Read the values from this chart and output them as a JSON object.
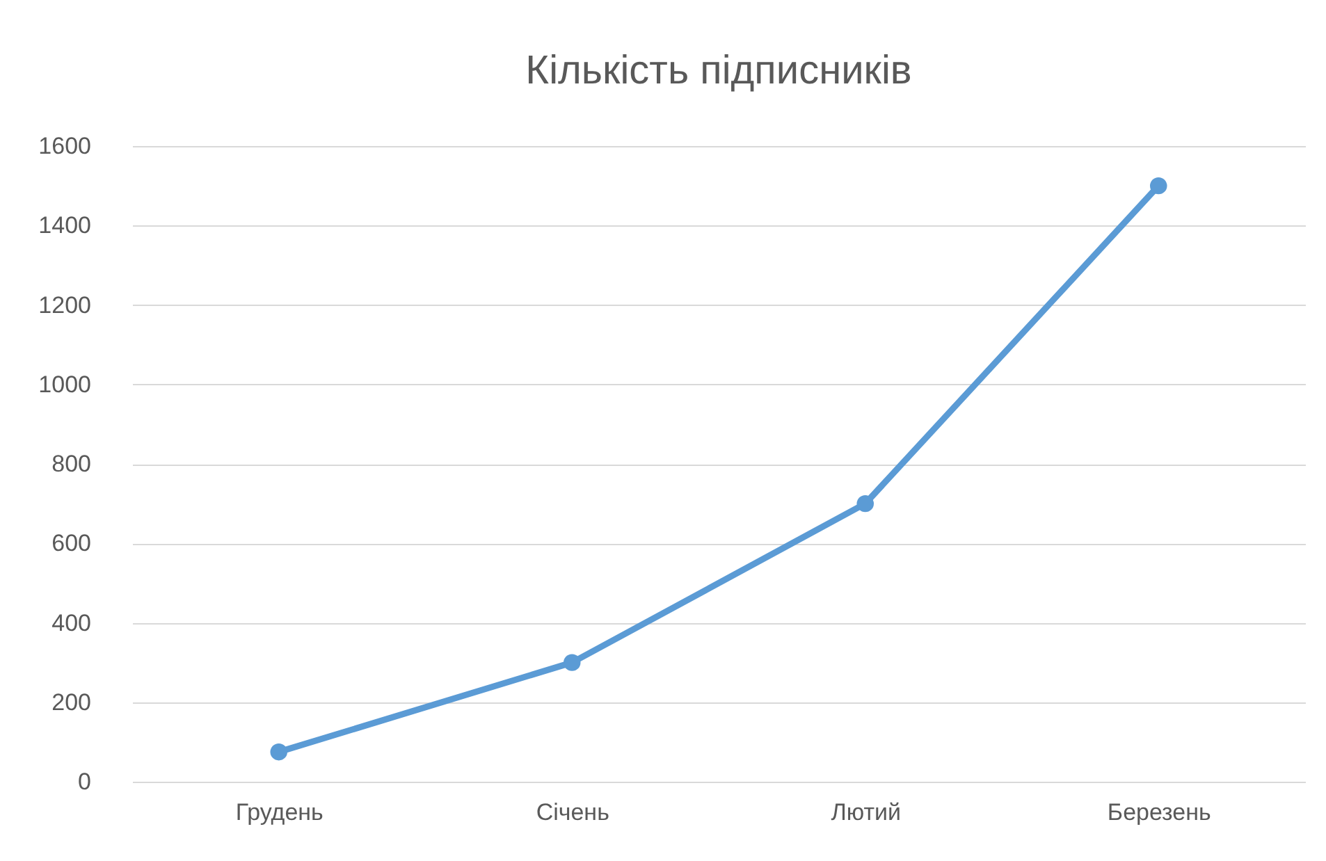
{
  "chart_data": {
    "type": "line",
    "title": "Кількість підписників",
    "categories": [
      "Грудень",
      "Січень",
      "Лютий",
      "Березень"
    ],
    "series": [
      {
        "color": "#5b9bd5",
        "values": [
          75,
          300,
          700,
          1500
        ]
      }
    ],
    "ylim": [
      0,
      1600
    ],
    "yticks": [
      0,
      200,
      400,
      600,
      800,
      1000,
      1200,
      1400,
      1600
    ],
    "grid": "y",
    "marker": "circle",
    "legend": false
  }
}
